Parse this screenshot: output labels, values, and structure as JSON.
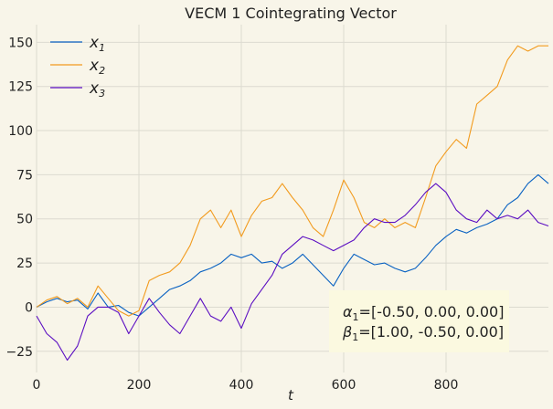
{
  "chart_data": {
    "type": "line",
    "title": "VECM 1 Cointegrating Vector",
    "xlabel": "t",
    "ylabel": "",
    "xlim": [
      0,
      1000
    ],
    "ylim": [
      -37,
      160
    ],
    "xticks": [
      0,
      200,
      400,
      600,
      800
    ],
    "yticks": [
      -25,
      0,
      25,
      50,
      75,
      100,
      125,
      150
    ],
    "grid": true,
    "legend": "top-left",
    "series": [
      {
        "name": "x1",
        "name_base": "x",
        "name_sub": "1",
        "color": "#0a62c2",
        "x": [
          0,
          20,
          40,
          60,
          80,
          100,
          120,
          140,
          160,
          180,
          200,
          220,
          240,
          260,
          280,
          300,
          320,
          340,
          360,
          380,
          400,
          420,
          440,
          460,
          480,
          500,
          520,
          540,
          560,
          580,
          600,
          620,
          640,
          660,
          680,
          700,
          720,
          740,
          760,
          780,
          800,
          820,
          840,
          860,
          880,
          900,
          920,
          940,
          960,
          980,
          1000
        ],
        "y": [
          0,
          3,
          5,
          3,
          4,
          -1,
          8,
          0,
          1,
          -3,
          -5,
          0,
          5,
          10,
          12,
          15,
          20,
          22,
          25,
          30,
          28,
          30,
          25,
          26,
          22,
          25,
          30,
          24,
          18,
          12,
          22,
          30,
          27,
          24,
          25,
          22,
          20,
          22,
          28,
          35,
          40,
          44,
          42,
          45,
          47,
          50,
          58,
          62,
          70,
          75,
          70
        ]
      },
      {
        "name": "x2",
        "name_base": "x",
        "name_sub": "2",
        "color": "#f29b1e",
        "x": [
          0,
          20,
          40,
          60,
          80,
          100,
          120,
          140,
          160,
          180,
          200,
          220,
          240,
          260,
          280,
          300,
          320,
          340,
          360,
          380,
          400,
          420,
          440,
          460,
          480,
          500,
          520,
          540,
          560,
          580,
          600,
          620,
          640,
          660,
          680,
          700,
          720,
          740,
          760,
          780,
          800,
          820,
          840,
          860,
          880,
          900,
          920,
          940,
          960,
          980,
          1000
        ],
        "y": [
          0,
          4,
          6,
          2,
          5,
          0,
          12,
          5,
          -2,
          -5,
          -2,
          15,
          18,
          20,
          25,
          35,
          50,
          55,
          45,
          55,
          40,
          52,
          60,
          62,
          70,
          62,
          55,
          45,
          40,
          55,
          72,
          62,
          48,
          45,
          50,
          45,
          48,
          45,
          62,
          80,
          88,
          95,
          90,
          115,
          120,
          125,
          140,
          148,
          145,
          148,
          148
        ]
      },
      {
        "name": "x3",
        "name_base": "x",
        "name_sub": "3",
        "color": "#5b0ec2",
        "x": [
          0,
          20,
          40,
          60,
          80,
          100,
          120,
          140,
          160,
          180,
          200,
          220,
          240,
          260,
          280,
          300,
          320,
          340,
          360,
          380,
          400,
          420,
          440,
          460,
          480,
          500,
          520,
          540,
          560,
          580,
          600,
          620,
          640,
          660,
          680,
          700,
          720,
          740,
          760,
          780,
          800,
          820,
          840,
          860,
          880,
          900,
          920,
          940,
          960,
          980,
          1000
        ],
        "y": [
          -5,
          -15,
          -20,
          -30,
          -22,
          -5,
          0,
          0,
          -3,
          -15,
          -5,
          5,
          -3,
          -10,
          -15,
          -5,
          5,
          -5,
          -8,
          0,
          -12,
          2,
          10,
          18,
          30,
          35,
          40,
          38,
          35,
          32,
          35,
          38,
          45,
          50,
          48,
          48,
          52,
          58,
          65,
          70,
          65,
          55,
          50,
          48,
          55,
          50,
          52,
          50,
          55,
          48,
          46
        ]
      }
    ],
    "annotation": {
      "alpha_symbol": "α",
      "alpha_sub": "1",
      "alpha_value": "=[-0.50, 0.00, 0.00]",
      "beta_symbol": "β",
      "beta_sub": "1",
      "beta_value": "=[1.00, -0.50, 0.00]"
    }
  },
  "colors": {
    "background": "#f8f5e9",
    "grid": "#dcdad0",
    "annotation_box": "#fbf9e0"
  }
}
